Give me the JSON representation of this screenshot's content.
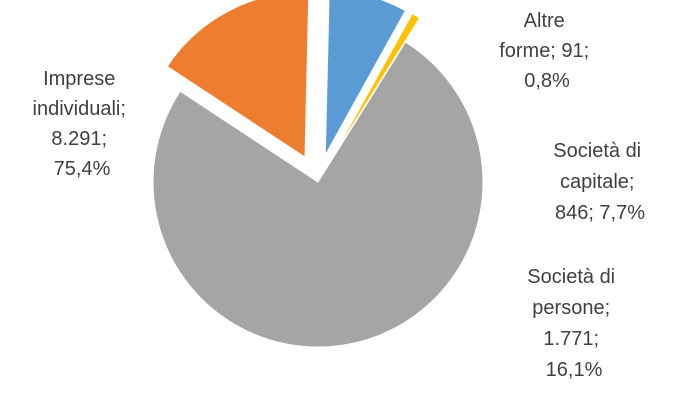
{
  "chart_data": {
    "type": "pie",
    "slices": [
      {
        "category": "Imprese individuali",
        "value": 8291,
        "percent": 75.4,
        "color": "#a5a5a5",
        "exploded": false,
        "label_lines": [
          "Imprese",
          "individuali;",
          "8.291;",
          "75,4%"
        ]
      },
      {
        "category": "Società di persone",
        "value": 1771,
        "percent": 16.1,
        "color": "#ed7d31",
        "exploded": true,
        "label_lines": [
          "Società di",
          "persone;",
          "1.771;",
          "16,1%"
        ]
      },
      {
        "category": "Società di capitale",
        "value": 846,
        "percent": 7.7,
        "color": "#5b9bd5",
        "exploded": true,
        "label_lines": [
          "Società di",
          "capitale;",
          "846; 7,7%"
        ]
      },
      {
        "category": "Altre forme",
        "value": 91,
        "percent": 0.8,
        "color": "#ffc000",
        "exploded": true,
        "label_lines": [
          "Altre",
          "forme; 91;",
          "0,8%"
        ]
      }
    ],
    "legend": "none",
    "data_labels": "category; value; percent"
  }
}
